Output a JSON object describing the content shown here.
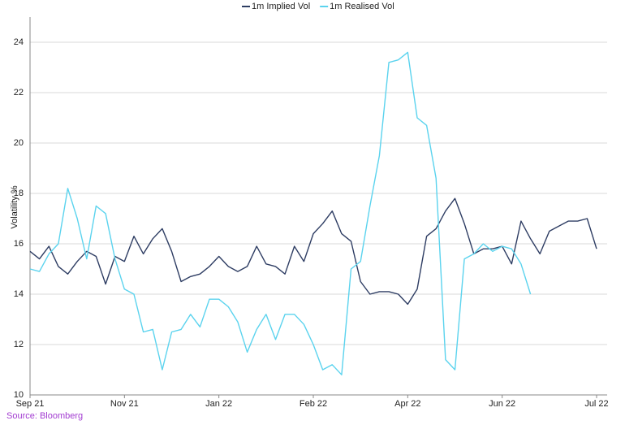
{
  "chart_data": {
    "type": "line",
    "y_label": "Volatility %",
    "source": "Source: Bloomberg",
    "categories": [
      "Sep 21",
      null,
      null,
      null,
      null,
      null,
      null,
      null,
      null,
      null,
      "Nov 21",
      null,
      null,
      null,
      null,
      null,
      null,
      null,
      null,
      null,
      "Jan 22",
      null,
      null,
      null,
      null,
      null,
      null,
      null,
      null,
      null,
      "Feb 22",
      null,
      null,
      null,
      null,
      null,
      null,
      null,
      null,
      null,
      "Apr 22",
      null,
      null,
      null,
      null,
      null,
      null,
      null,
      null,
      null,
      "Jun 22",
      null,
      null,
      null,
      null,
      null,
      null,
      null,
      null,
      null,
      "Jul 22"
    ],
    "series": [
      {
        "name": "1m Implied Vol",
        "color": "#2e3d63",
        "values": [
          15.7,
          15.4,
          15.9,
          15.1,
          14.8,
          15.3,
          15.7,
          15.5,
          14.4,
          15.5,
          15.3,
          16.3,
          15.6,
          16.2,
          16.6,
          15.7,
          14.5,
          14.7,
          14.8,
          15.1,
          15.5,
          15.1,
          14.9,
          15.1,
          15.9,
          15.2,
          15.1,
          14.8,
          15.9,
          15.3,
          16.4,
          16.8,
          17.3,
          16.4,
          16.1,
          14.5,
          14.0,
          14.1,
          14.1,
          14.0,
          13.6,
          14.2,
          16.3,
          16.6,
          17.3,
          17.8,
          16.8,
          15.6,
          15.8,
          15.8,
          15.9,
          15.2,
          16.9,
          16.2,
          15.6,
          16.5,
          16.7,
          16.9,
          16.9,
          17.0,
          15.8
        ]
      },
      {
        "name": "1m Realised Vol",
        "color": "#5bd3ee",
        "values": [
          15.0,
          14.9,
          15.6,
          16.0,
          18.2,
          17.0,
          15.4,
          17.5,
          17.2,
          15.4,
          14.2,
          14.0,
          12.5,
          12.6,
          11.0,
          12.5,
          12.6,
          13.2,
          12.7,
          13.8,
          13.8,
          13.5,
          12.9,
          11.7,
          12.6,
          13.2,
          12.2,
          13.2,
          13.2,
          12.8,
          12.0,
          11.0,
          11.2,
          10.8,
          15.0,
          15.3,
          17.5,
          19.5,
          23.2,
          23.3,
          23.6,
          21.0,
          20.7,
          18.6,
          11.4,
          11.0,
          15.4,
          15.6,
          16.0,
          15.7,
          15.9,
          15.8,
          15.2,
          14.0,
          null,
          null,
          null,
          null,
          null,
          null,
          null
        ]
      }
    ],
    "ylim": [
      10,
      25
    ],
    "yticks": [
      10,
      12,
      14,
      16,
      18,
      20,
      22,
      24
    ],
    "grid": true,
    "legend": "top",
    "source_color": "#a23bd1"
  }
}
